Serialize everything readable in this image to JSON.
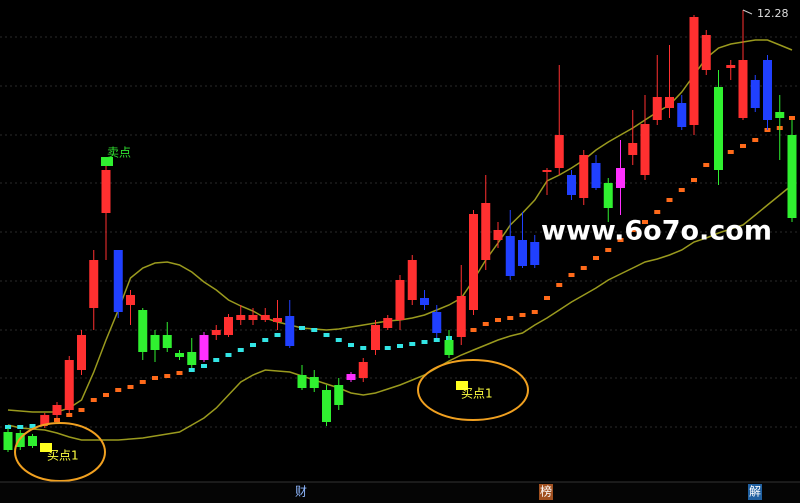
{
  "chart_data": {
    "type": "candlestick",
    "ylim": [
      7.58,
      12.38
    ],
    "high_label": 12.28,
    "candles": [
      {
        "o": 8.06,
        "h": 8.1,
        "l": 7.86,
        "c": 7.88,
        "color": "#30f030"
      },
      {
        "o": 8.05,
        "h": 8.08,
        "l": 7.88,
        "c": 7.91,
        "color": "#30f030"
      },
      {
        "o": 8.02,
        "h": 8.04,
        "l": 7.9,
        "c": 7.92,
        "color": "#30f030"
      },
      {
        "o": 8.13,
        "h": 8.25,
        "l": 8.1,
        "c": 8.23,
        "color": "#ff3030"
      },
      {
        "o": 8.23,
        "h": 8.36,
        "l": 8.2,
        "c": 8.33,
        "color": "#ff3030"
      },
      {
        "o": 8.28,
        "h": 8.82,
        "l": 8.25,
        "c": 8.78,
        "color": "#ff3030"
      },
      {
        "o": 8.68,
        "h": 9.08,
        "l": 8.63,
        "c": 9.03,
        "color": "#ff3030"
      },
      {
        "o": 9.3,
        "h": 9.88,
        "l": 9.08,
        "c": 9.78,
        "color": "#ff3030"
      },
      {
        "o": 10.25,
        "h": 10.78,
        "l": 9.78,
        "c": 10.68,
        "color": "#ff3030"
      },
      {
        "o": 9.88,
        "h": 9.88,
        "l": 9.2,
        "c": 9.26,
        "color": "#2040ff"
      },
      {
        "o": 9.33,
        "h": 9.48,
        "l": 9.13,
        "c": 9.43,
        "color": "#ff3030"
      },
      {
        "o": 9.28,
        "h": 9.3,
        "l": 8.78,
        "c": 8.86,
        "color": "#30f030"
      },
      {
        "o": 9.03,
        "h": 9.08,
        "l": 8.76,
        "c": 8.88,
        "color": "#30f030"
      },
      {
        "o": 9.03,
        "h": 9.16,
        "l": 8.86,
        "c": 8.9,
        "color": "#30f030"
      },
      {
        "o": 8.85,
        "h": 8.88,
        "l": 8.78,
        "c": 8.81,
        "color": "#30f030"
      },
      {
        "o": 8.86,
        "h": 9.0,
        "l": 8.7,
        "c": 8.73,
        "color": "#30f030"
      },
      {
        "o": 8.78,
        "h": 9.06,
        "l": 8.76,
        "c": 9.03,
        "color": "#ff30ff"
      },
      {
        "o": 9.03,
        "h": 9.13,
        "l": 8.98,
        "c": 9.08,
        "color": "#ff3030"
      },
      {
        "o": 9.03,
        "h": 9.24,
        "l": 9.01,
        "c": 9.21,
        "color": "#ff3030"
      },
      {
        "o": 9.18,
        "h": 9.33,
        "l": 9.13,
        "c": 9.23,
        "color": "#ff3030"
      },
      {
        "o": 9.18,
        "h": 9.3,
        "l": 9.13,
        "c": 9.23,
        "color": "#ff3030"
      },
      {
        "o": 9.18,
        "h": 9.3,
        "l": 9.16,
        "c": 9.23,
        "color": "#ff3030"
      },
      {
        "o": 9.16,
        "h": 9.38,
        "l": 9.08,
        "c": 9.2,
        "color": "#ff3030"
      },
      {
        "o": 9.22,
        "h": 9.38,
        "l": 8.9,
        "c": 8.92,
        "color": "#2040ff"
      },
      {
        "o": 8.63,
        "h": 8.73,
        "l": 8.48,
        "c": 8.5,
        "color": "#30f030"
      },
      {
        "o": 8.61,
        "h": 8.68,
        "l": 8.46,
        "c": 8.5,
        "color": "#30f030"
      },
      {
        "o": 8.48,
        "h": 8.53,
        "l": 8.12,
        "c": 8.16,
        "color": "#30f030"
      },
      {
        "o": 8.53,
        "h": 8.6,
        "l": 8.28,
        "c": 8.33,
        "color": "#30f030"
      },
      {
        "o": 8.58,
        "h": 8.66,
        "l": 8.56,
        "c": 8.64,
        "color": "#ff30ff"
      },
      {
        "o": 8.6,
        "h": 8.8,
        "l": 8.56,
        "c": 8.76,
        "color": "#ff3030"
      },
      {
        "o": 8.88,
        "h": 9.18,
        "l": 8.83,
        "c": 9.13,
        "color": "#ff3030"
      },
      {
        "o": 9.1,
        "h": 9.23,
        "l": 9.08,
        "c": 9.2,
        "color": "#ff3030"
      },
      {
        "o": 9.18,
        "h": 9.63,
        "l": 9.08,
        "c": 9.58,
        "color": "#ff3030"
      },
      {
        "o": 9.38,
        "h": 9.83,
        "l": 9.33,
        "c": 9.78,
        "color": "#ff3030"
      },
      {
        "o": 9.4,
        "h": 9.48,
        "l": 9.28,
        "c": 9.33,
        "color": "#2040ff"
      },
      {
        "o": 9.26,
        "h": 9.33,
        "l": 9.0,
        "c": 9.05,
        "color": "#2040ff"
      },
      {
        "o": 8.98,
        "h": 9.08,
        "l": 8.8,
        "c": 8.83,
        "color": "#30f030"
      },
      {
        "o": 9.01,
        "h": 9.73,
        "l": 8.93,
        "c": 9.42,
        "color": "#ff3030"
      },
      {
        "o": 9.28,
        "h": 10.28,
        "l": 9.23,
        "c": 10.24,
        "color": "#ff3030"
      },
      {
        "o": 9.78,
        "h": 10.63,
        "l": 9.68,
        "c": 10.35,
        "color": "#ff3030"
      },
      {
        "o": 9.98,
        "h": 10.16,
        "l": 9.9,
        "c": 10.08,
        "color": "#ff3030"
      },
      {
        "o": 10.02,
        "h": 10.28,
        "l": 9.58,
        "c": 9.62,
        "color": "#2040ff"
      },
      {
        "o": 9.98,
        "h": 10.26,
        "l": 9.7,
        "c": 9.72,
        "color": "#2040ff"
      },
      {
        "o": 9.96,
        "h": 10.03,
        "l": 9.7,
        "c": 9.73,
        "color": "#2040ff"
      },
      {
        "o": 10.66,
        "h": 10.7,
        "l": 10.43,
        "c": 10.68,
        "color": "#ff3030"
      },
      {
        "o": 10.7,
        "h": 11.73,
        "l": 10.63,
        "c": 11.03,
        "color": "#ff3030"
      },
      {
        "o": 10.63,
        "h": 10.68,
        "l": 10.38,
        "c": 10.43,
        "color": "#2040ff"
      },
      {
        "o": 10.4,
        "h": 10.88,
        "l": 10.33,
        "c": 10.83,
        "color": "#ff3030"
      },
      {
        "o": 10.75,
        "h": 10.83,
        "l": 10.48,
        "c": 10.5,
        "color": "#2040ff"
      },
      {
        "o": 10.55,
        "h": 10.6,
        "l": 10.16,
        "c": 10.3,
        "color": "#30f030"
      },
      {
        "o": 10.5,
        "h": 10.98,
        "l": 10.23,
        "c": 10.7,
        "color": "#ff30ff"
      },
      {
        "o": 10.83,
        "h": 11.28,
        "l": 10.73,
        "c": 10.95,
        "color": "#ff3030"
      },
      {
        "o": 10.63,
        "h": 11.43,
        "l": 10.58,
        "c": 11.14,
        "color": "#ff3030"
      },
      {
        "o": 11.18,
        "h": 11.83,
        "l": 11.13,
        "c": 11.41,
        "color": "#ff3030"
      },
      {
        "o": 11.3,
        "h": 11.93,
        "l": 11.2,
        "c": 11.41,
        "color": "#ff3030"
      },
      {
        "o": 11.35,
        "h": 11.43,
        "l": 11.08,
        "c": 11.11,
        "color": "#2040ff"
      },
      {
        "o": 11.13,
        "h": 12.23,
        "l": 11.03,
        "c": 12.21,
        "color": "#ff3030"
      },
      {
        "o": 11.68,
        "h": 12.08,
        "l": 11.63,
        "c": 12.03,
        "color": "#ff3030"
      },
      {
        "o": 11.51,
        "h": 11.68,
        "l": 10.53,
        "c": 10.68,
        "color": "#30f030"
      },
      {
        "o": 11.7,
        "h": 11.78,
        "l": 11.58,
        "c": 11.73,
        "color": "#ff3030"
      },
      {
        "o": 11.2,
        "h": 12.28,
        "l": 11.18,
        "c": 11.78,
        "color": "#ff3030"
      },
      {
        "o": 11.58,
        "h": 11.63,
        "l": 11.26,
        "c": 11.3,
        "color": "#2040ff"
      },
      {
        "o": 11.78,
        "h": 11.83,
        "l": 11.08,
        "c": 11.18,
        "color": "#2040ff"
      },
      {
        "o": 11.26,
        "h": 11.43,
        "l": 10.78,
        "c": 11.2,
        "color": "#30f030"
      },
      {
        "o": 11.03,
        "h": 11.18,
        "l": 10.16,
        "c": 10.2,
        "color": "#30f030"
      }
    ],
    "upper": {
      "color": "#9a9a1e",
      "values": [
        8.28,
        8.27,
        8.26,
        8.26,
        8.26,
        8.3,
        8.38,
        8.66,
        8.98,
        9.28,
        9.6,
        9.7,
        9.75,
        9.76,
        9.73,
        9.66,
        9.56,
        9.48,
        9.38,
        9.32,
        9.27,
        9.2,
        9.16,
        9.13,
        9.1,
        9.09,
        9.08,
        9.09,
        9.11,
        9.13,
        9.15,
        9.17,
        9.18,
        9.2,
        9.23,
        9.28,
        9.33,
        9.4,
        9.58,
        9.78,
        9.95,
        10.13,
        10.25,
        10.38,
        10.57,
        10.63,
        10.7,
        10.78,
        10.88,
        10.96,
        11.03,
        11.1,
        11.18,
        11.26,
        11.33,
        11.46,
        11.63,
        11.8,
        11.9,
        11.94,
        11.96,
        11.98,
        11.98,
        11.93,
        11.88
      ]
    },
    "lower": {
      "color": "#9a9a1e",
      "values": [
        8.13,
        8.1,
        8.09,
        8.08,
        8.05,
        8.01,
        7.98,
        7.98,
        7.98,
        7.98,
        7.99,
        8.0,
        8.02,
        8.04,
        8.06,
        8.13,
        8.2,
        8.3,
        8.43,
        8.56,
        8.63,
        8.68,
        8.67,
        8.66,
        8.62,
        8.58,
        8.54,
        8.5,
        8.45,
        8.43,
        8.45,
        8.49,
        8.53,
        8.58,
        8.63,
        8.7,
        8.77,
        8.83,
        8.88,
        8.93,
        8.98,
        9.02,
        9.05,
        9.13,
        9.2,
        9.28,
        9.36,
        9.43,
        9.5,
        9.58,
        9.64,
        9.7,
        9.76,
        9.79,
        9.83,
        9.88,
        9.96,
        10.0,
        10.05,
        10.09,
        10.13,
        10.23,
        10.33,
        10.43,
        10.53
      ]
    },
    "signal": {
      "values": [
        8.11,
        8.11,
        8.12,
        8.14,
        8.18,
        8.23,
        8.28,
        8.38,
        8.43,
        8.48,
        8.51,
        8.56,
        8.6,
        8.62,
        8.65,
        8.68,
        8.72,
        8.78,
        8.83,
        8.88,
        8.93,
        8.98,
        9.03,
        9.1,
        9.1,
        9.08,
        9.03,
        8.98,
        8.93,
        8.9,
        8.9,
        8.9,
        8.92,
        8.94,
        8.96,
        8.98,
        9.0,
        9.03,
        9.08,
        9.14,
        9.18,
        9.2,
        9.23,
        9.26,
        9.4,
        9.53,
        9.63,
        9.7,
        9.8,
        9.88,
        9.98,
        10.08,
        10.16,
        10.26,
        10.38,
        10.48,
        10.58,
        10.73,
        10.78,
        10.86,
        10.92,
        10.98,
        11.08,
        11.1,
        11.2
      ],
      "colors": [
        "#33e5e5",
        "#33e5e5",
        "#33e5e5",
        "#ff6a1a",
        "#ff6a1a",
        "#ff6a1a",
        "#ff6a1a",
        "#ff6a1a",
        "#ff6a1a",
        "#ff6a1a",
        "#ff6a1a",
        "#ff6a1a",
        "#ff6a1a",
        "#ff6a1a",
        "#ff6a1a",
        "#33e5e5",
        "#33e5e5",
        "#33e5e5",
        "#33e5e5",
        "#33e5e5",
        "#33e5e5",
        "#33e5e5",
        "#33e5e5",
        "#33e5e5",
        "#33e5e5",
        "#33e5e5",
        "#33e5e5",
        "#33e5e5",
        "#33e5e5",
        "#33e5e5",
        "#33e5e5",
        "#33e5e5",
        "#33e5e5",
        "#33e5e5",
        "#33e5e5",
        "#33e5e5",
        "#33e5e5",
        "#ff6a1a",
        "#ff6a1a",
        "#ff6a1a",
        "#ff6a1a",
        "#ff6a1a",
        "#ff6a1a",
        "#ff6a1a",
        "#ff6a1a",
        "#ff6a1a",
        "#ff6a1a",
        "#ff6a1a",
        "#ff6a1a",
        "#ff6a1a",
        "#ff6a1a",
        "#ff6a1a",
        "#ff6a1a",
        "#ff6a1a",
        "#ff6a1a",
        "#ff6a1a",
        "#ff6a1a",
        "#ff6a1a",
        "#ff6a1a",
        "#ff6a1a",
        "#ff6a1a",
        "#ff6a1a",
        "#ff6a1a",
        "#ff6a1a",
        "#ff6a1a"
      ]
    },
    "annotations": [
      "卖点",
      "买点1",
      "买点1"
    ],
    "watermark": "www.6o7o.com",
    "bottom_tabs": [
      "财",
      "榜",
      "解"
    ]
  }
}
